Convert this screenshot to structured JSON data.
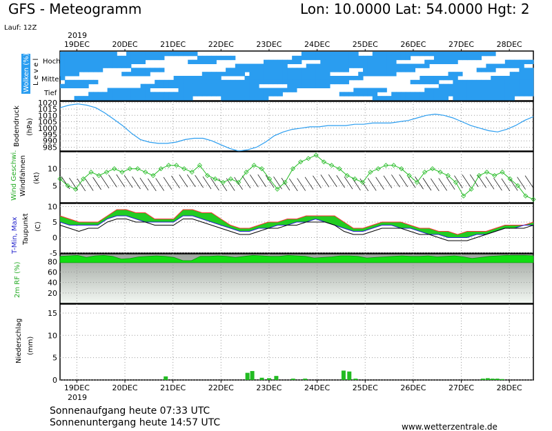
{
  "header": {
    "title": "GFS - Meteogramm",
    "location": "Lon: 10.0000  Lat: 54.0000  Hgt: 2",
    "run": "Lauf: 12Z"
  },
  "footer": {
    "sunrise": "Sonnenaufgang heute 07:33 UTC",
    "sunset": "Sonnenuntergang heute 14:57 UTC",
    "source": "www.wetterzentrale.de"
  },
  "chart_data": {
    "type": "line",
    "year_label": "2019",
    "days": [
      "19DEC",
      "20DEC",
      "21DEC",
      "22DEC",
      "23DEC",
      "24DEC",
      "25DEC",
      "26DEC",
      "27DEC",
      "28DEC"
    ],
    "time_range": [
      -0.35,
      9.5
    ],
    "panels": {
      "clouds": {
        "ylabel": "Wolken (%)",
        "levels_label": "L e v e l",
        "levels": [
          "Hoch",
          "Mittel",
          "Tief"
        ],
        "color": "#2a9df0"
      },
      "pressure": {
        "ylabel": "Bodendruck",
        "unit": "(hPa)",
        "ticks": [
          1020,
          1015,
          1010,
          1005,
          1000,
          995,
          990,
          985
        ],
        "ylim": [
          982,
          1021
        ],
        "color": "#2a9df0",
        "values": [
          1016,
          1018,
          1019,
          1018,
          1016,
          1012,
          1007,
          1002,
          996,
          991,
          989,
          988,
          988,
          989,
          991,
          992,
          992,
          990,
          987,
          984,
          982,
          983,
          985,
          989,
          994,
          997,
          999,
          1000,
          1001,
          1001,
          1002,
          1002,
          1002,
          1003,
          1003,
          1004,
          1004,
          1004,
          1005,
          1006,
          1008,
          1010,
          1011,
          1010,
          1008,
          1005,
          1002,
          1000,
          998,
          997,
          999,
          1002,
          1006,
          1009
        ]
      },
      "wind": {
        "ylabel": "Wind Geschwi.",
        "ylabel2": "Windfahnen",
        "unit": "(kt)",
        "ticks": [
          10,
          5
        ],
        "ylim": [
          0,
          15
        ],
        "color": "#22bb22",
        "values": [
          7,
          5,
          4,
          7,
          9,
          8,
          9,
          10,
          9,
          10,
          10,
          9,
          8,
          10,
          11,
          11,
          10,
          9,
          11,
          8,
          7,
          6,
          7,
          6,
          9,
          11,
          10,
          7,
          4,
          6,
          10,
          12,
          13,
          14,
          12,
          11,
          10,
          8,
          7,
          6,
          9,
          10,
          11,
          11,
          10,
          8,
          6,
          9,
          10,
          9,
          8,
          6,
          2,
          4,
          8,
          9,
          8,
          9,
          7,
          5,
          2,
          1
        ]
      },
      "temperature": {
        "ylabel": "T-Min, Max",
        "ylabel2": "Taupunkt",
        "unit": "(C)",
        "ticks": [
          10,
          5,
          0,
          -5
        ],
        "ylim": [
          -5,
          11
        ],
        "tmax": [
          7,
          6,
          5,
          5,
          5,
          7,
          9,
          9,
          8,
          8,
          6,
          6,
          6,
          9,
          9,
          8,
          8,
          6,
          4,
          3,
          3,
          4,
          5,
          5,
          6,
          6,
          7,
          7,
          7,
          7,
          5,
          3,
          3,
          4,
          5,
          5,
          5,
          4,
          3,
          3,
          2,
          2,
          1,
          2,
          2,
          2,
          3,
          4,
          4,
          4,
          5
        ],
        "tmin": [
          5,
          4,
          4,
          4,
          4,
          6,
          7,
          7,
          6,
          5,
          5,
          5,
          5,
          7,
          7,
          6,
          5,
          4,
          3,
          2,
          2,
          3,
          3,
          4,
          4,
          5,
          5,
          6,
          5,
          4,
          3,
          2,
          2,
          3,
          4,
          4,
          3,
          3,
          2,
          1,
          1,
          0,
          0,
          0,
          1,
          1,
          2,
          3,
          3,
          4,
          4
        ],
        "dewpoint": [
          4,
          3,
          2,
          3,
          3,
          5,
          6,
          6,
          5,
          5,
          4,
          4,
          4,
          6,
          6,
          5,
          4,
          3,
          2,
          1,
          1,
          2,
          3,
          3,
          4,
          4,
          5,
          5,
          5,
          4,
          2,
          1,
          1,
          2,
          3,
          3,
          3,
          2,
          1,
          1,
          0,
          -1,
          -1,
          -1,
          0,
          1,
          2,
          3,
          3,
          3,
          4
        ],
        "color_max": "#ff3030",
        "color_min": "#2222cc",
        "color_dew": "#000000",
        "color_fill": "#22cc22"
      },
      "humidity": {
        "ylabel": "2m RF (%)",
        "ticks": [
          80,
          60,
          40,
          20
        ],
        "ylim": [
          0,
          95
        ],
        "color": "#11dd11",
        "values": [
          90,
          91,
          92,
          88,
          91,
          92,
          90,
          85,
          86,
          89,
          90,
          91,
          90,
          88,
          82,
          82,
          90,
          90,
          91,
          90,
          88,
          90,
          92,
          91,
          90,
          90,
          92,
          91,
          90,
          87,
          88,
          89,
          91,
          91,
          90,
          87,
          88,
          89,
          90,
          91,
          90,
          90,
          91,
          89,
          90,
          91,
          89,
          86,
          88,
          90,
          91,
          92,
          92,
          92,
          91
        ]
      },
      "precip": {
        "ylabel": "Niederschlag",
        "unit": "(mm)",
        "ticks": [
          15,
          10,
          5,
          0
        ],
        "ylim": [
          0,
          17
        ],
        "color": "#22bb22",
        "bars": [
          [
            1.85,
            0.8
          ],
          [
            3.55,
            1.6
          ],
          [
            3.65,
            2.0
          ],
          [
            3.85,
            0.5
          ],
          [
            4.0,
            0.4
          ],
          [
            4.15,
            0.9
          ],
          [
            4.5,
            0.3
          ],
          [
            4.75,
            0.3
          ],
          [
            5.55,
            2.1
          ],
          [
            5.67,
            1.9
          ],
          [
            5.8,
            0.3
          ],
          [
            8.45,
            0.3
          ],
          [
            8.55,
            0.4
          ],
          [
            8.65,
            0.3
          ],
          [
            8.75,
            0.3
          ],
          [
            8.85,
            0.2
          ]
        ]
      }
    }
  }
}
